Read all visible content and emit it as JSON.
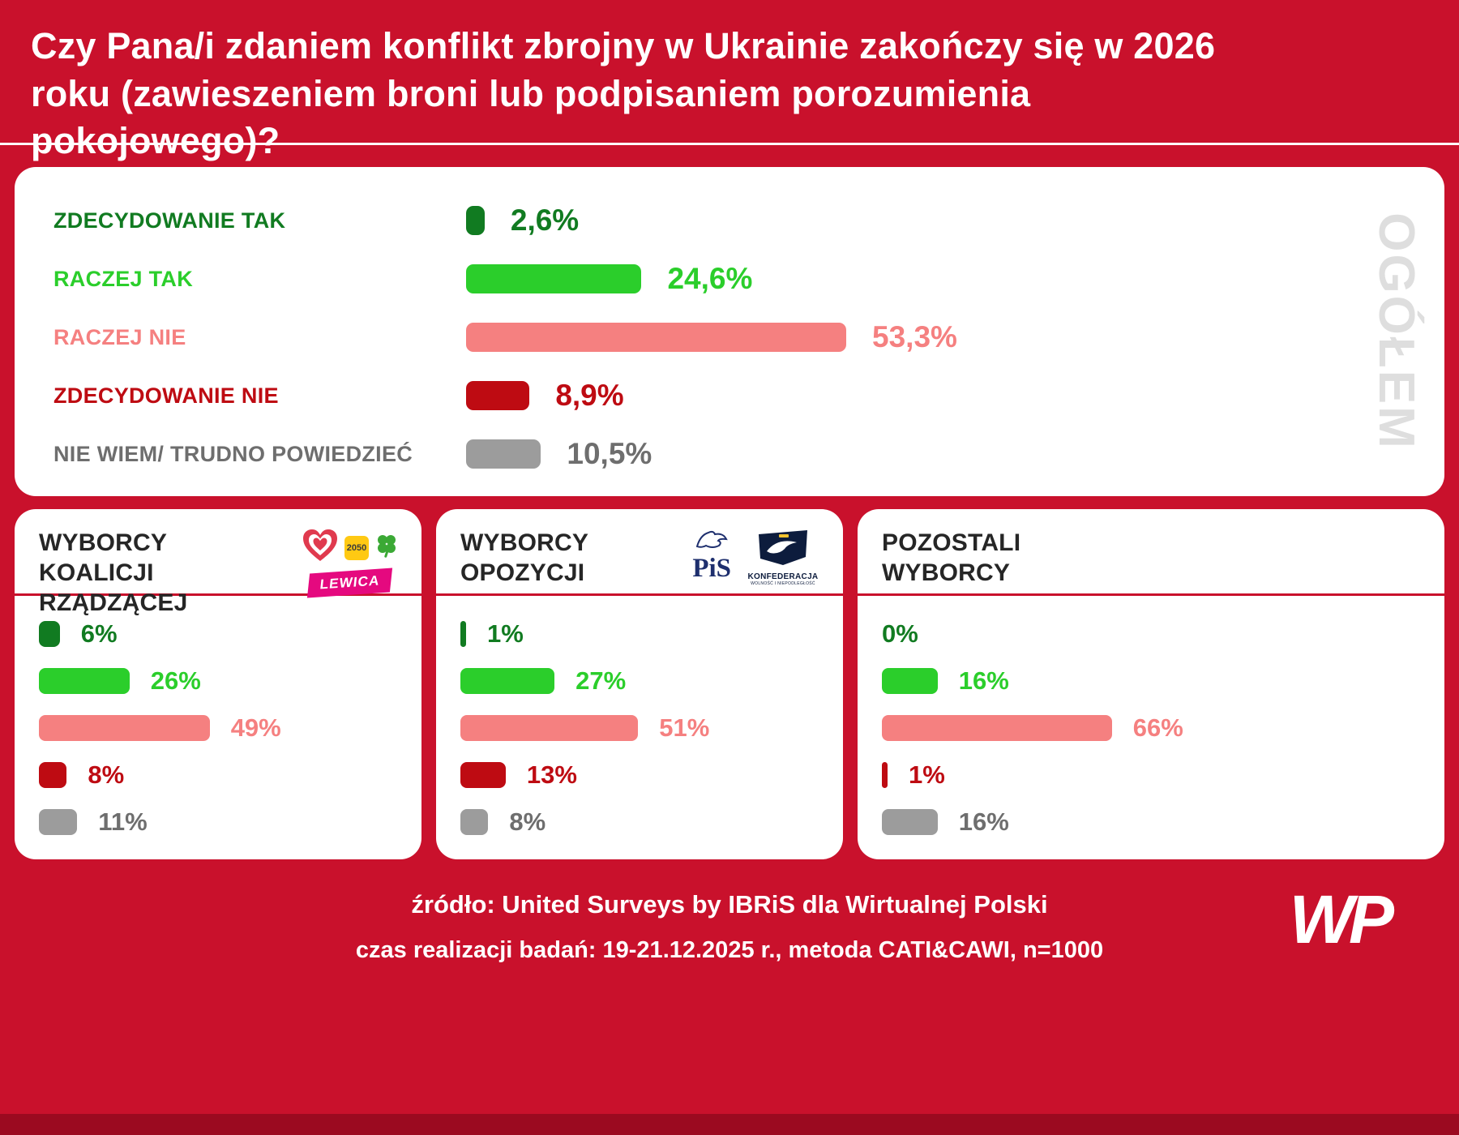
{
  "title": "Czy Pana/i zdaniem konflikt zbrojny w Ukrainie zakończy się w 2026 roku (zawieszeniem broni lub podpisaniem porozumienia pokojowego)?",
  "colors": {
    "background_red": "#C9112C",
    "bottom_strip": "#9B0A20",
    "dark_green": "#117B21",
    "green": "#2BCE2B",
    "salmon": "#F58080",
    "dark_red": "#BE0B12",
    "gray_bar": "#9C9C9C",
    "gray_text": "#6E6E6E",
    "watermark_gray": "#DEDEDE",
    "lewica_pink": "#E5097F",
    "pis_navy": "#1E2F6E",
    "konf_navy": "#0D1C3D",
    "heart_red": "#E03A4E",
    "p2050_yellow": "#FFC913",
    "clover_green": "#3BA935"
  },
  "overall": {
    "watermark": "OGÓŁEM",
    "rows": [
      {
        "label": "ZDECYDOWANIE TAK",
        "value": "2,6%",
        "pct": 2.6
      },
      {
        "label": "RACZEJ TAK",
        "value": "24,6%",
        "pct": 24.6
      },
      {
        "label": "RACZEJ NIE",
        "value": "53,3%",
        "pct": 53.3
      },
      {
        "label": "ZDECYDOWANIE NIE",
        "value": "8,9%",
        "pct": 8.9
      },
      {
        "label": "NIE WIEM/ TRUDNO POWIEDZIEĆ",
        "value": "10,5%",
        "pct": 10.5
      }
    ]
  },
  "panels": [
    {
      "title_lines": [
        "WYBORCY",
        "KOALICJI RZĄDZĄCEJ"
      ],
      "logos": {
        "p2050": "2050",
        "lewica": "LEWICA"
      },
      "rows": [
        {
          "value": "6%",
          "pct": 6
        },
        {
          "value": "26%",
          "pct": 26
        },
        {
          "value": "49%",
          "pct": 49
        },
        {
          "value": "8%",
          "pct": 8
        },
        {
          "value": "11%",
          "pct": 11
        }
      ]
    },
    {
      "title_lines": [
        "WYBORCY",
        "OPOZYCJI"
      ],
      "logos": {
        "pis": "PiS",
        "konfederacja": "KONFEDERACJA",
        "konfederacja_sub": "WOLNOŚĆ I NIEPODLEGŁOŚĆ"
      },
      "rows": [
        {
          "value": "1%",
          "pct": 1
        },
        {
          "value": "27%",
          "pct": 27
        },
        {
          "value": "51%",
          "pct": 51
        },
        {
          "value": "13%",
          "pct": 13
        },
        {
          "value": "8%",
          "pct": 8
        }
      ]
    },
    {
      "title_lines": [
        "POZOSTALI",
        "WYBORCY"
      ],
      "logos": {},
      "rows": [
        {
          "value": "0%",
          "pct": 0
        },
        {
          "value": "16%",
          "pct": 16
        },
        {
          "value": "66%",
          "pct": 66
        },
        {
          "value": "1%",
          "pct": 1
        },
        {
          "value": "16%",
          "pct": 16
        }
      ]
    }
  ],
  "footer": {
    "source": "źródło: United Surveys by IBRiS dla Wirtualnej Polski",
    "details": "czas realizacji badań: 19-21.12.2025 r., metoda CATI&CAWI, n=1000",
    "wp_logo": "WP"
  },
  "chart_data": {
    "type": "bar",
    "orientation": "horizontal",
    "title": "Czy Pana/i zdaniem konflikt zbrojny w Ukrainie zakończy się w 2026 roku (zawieszeniem broni lub podpisaniem porozumienia pokojowego)?",
    "categories": [
      "ZDECYDOWANIE TAK",
      "RACZEJ TAK",
      "RACZEJ NIE",
      "ZDECYDOWANIE NIE",
      "NIE WIEM/ TRUDNO POWIEDZIEĆ"
    ],
    "series": [
      {
        "name": "OGÓŁEM",
        "values": [
          2.6,
          24.6,
          53.3,
          8.9,
          10.5
        ]
      },
      {
        "name": "WYBORCY KOALICJI RZĄDZĄCEJ",
        "values": [
          6,
          26,
          49,
          8,
          11
        ]
      },
      {
        "name": "WYBORCY OPOZYCJI",
        "values": [
          1,
          27,
          51,
          13,
          8
        ]
      },
      {
        "name": "POZOSTALI WYBORCY",
        "values": [
          0,
          16,
          66,
          1,
          16
        ]
      }
    ],
    "unit": "%",
    "xlim": [
      0,
      100
    ],
    "category_colors": [
      "#117B21",
      "#2BCE2B",
      "#F58080",
      "#BE0B12",
      "#9C9C9C"
    ],
    "source": "United Surveys by IBRiS dla Wirtualnej Polski, 19-21.12.2025, CATI&CAWI, n=1000"
  }
}
